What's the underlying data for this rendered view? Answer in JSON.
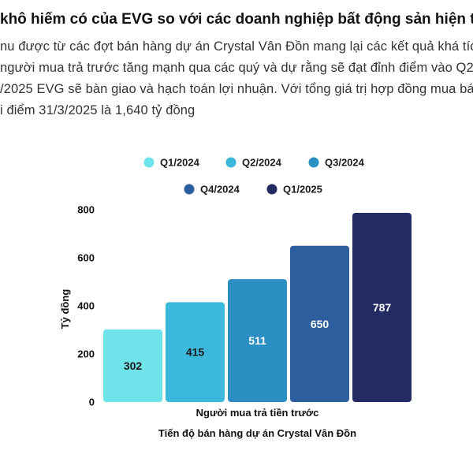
{
  "article": {
    "headline": " khô hiếm có của EVG so với các doanh nghiệp bất động sản hiện tại",
    "lines": [
      "nu được từ các đợt bán hàng dự án Crystal Vân Đồn mang lại các kết quả khá tíc",
      " người mua trả trước tăng mạnh qua các quý và dự rằng sẽ đạt đỉnh điểm vào Q2",
      "/2025 EVG sẽ bàn giao và hạch toán lợi nhuận. Với tổng giá trị hợp đồng mua bán",
      "i điểm 31/3/2025 là 1,640 tỷ đồng"
    ]
  },
  "chart_data": {
    "type": "bar",
    "title": "Tiến độ bán hàng dự án Crystal Vân Đồn",
    "xlabel": "Người mua trả tiền trước",
    "ylabel": "Tỷ đồng",
    "ylim": [
      0,
      800
    ],
    "yticks": [
      0,
      200,
      400,
      600,
      800
    ],
    "grid": false,
    "legend_position": "top",
    "series": [
      {
        "name": "Q1/2024",
        "value": 302,
        "color": "#6fe3ea",
        "label_color": "#1a1a1a"
      },
      {
        "name": "Q2/2024",
        "value": 415,
        "color": "#3cb8dc",
        "label_color": "#1a1a1a"
      },
      {
        "name": "Q3/2024",
        "value": 511,
        "color": "#2b8fc4",
        "label_color": "#ffffff"
      },
      {
        "name": "Q4/2024",
        "value": 650,
        "color": "#2d5f9e",
        "label_color": "#ffffff"
      },
      {
        "name": "Q1/2025",
        "value": 787,
        "color": "#232a64",
        "label_color": "#ffffff"
      }
    ]
  }
}
